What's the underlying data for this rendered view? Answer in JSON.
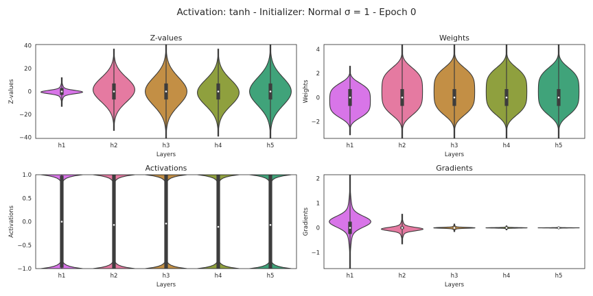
{
  "figure": {
    "title": "Activation: tanh - Initializer: Normal $\\sigma = 1$ - Epoch 0",
    "title_display": "Activation: tanh - Initializer: Normal σ = 1 - Epoch 0"
  },
  "colors": {
    "h1": "#d875e8",
    "h2": "#e57aa1",
    "h3": "#c38f45",
    "h4": "#8fa03e",
    "h5": "#40a37a",
    "outline": "#3a3a3a",
    "box": "#3d3d3d",
    "median": "#ffffff"
  },
  "chart_data": [
    {
      "type": "violin",
      "title": "Z-values",
      "xlabel": "Layers",
      "ylabel": "Z-values",
      "categories": [
        "h1",
        "h2",
        "h3",
        "h4",
        "h5"
      ],
      "ylim": [
        -41,
        41
      ],
      "yticks": [
        -40,
        -20,
        0,
        20,
        40
      ],
      "ytick_labels": [
        "−40",
        "−20",
        "0",
        "20",
        "40"
      ],
      "series": [
        {
          "category": "h1",
          "min": -13,
          "max": 12,
          "q1": -3,
          "median": 0,
          "q3": 3,
          "shape": "peaked",
          "maxwidth": 0.8
        },
        {
          "category": "h2",
          "min": -34,
          "max": 37,
          "q1": -7,
          "median": 0,
          "q3": 7,
          "shape": "bell",
          "maxwidth": 0.8
        },
        {
          "category": "h3",
          "min": -41,
          "max": 41,
          "q1": -7,
          "median": 0,
          "q3": 7,
          "shape": "bell",
          "maxwidth": 0.8
        },
        {
          "category": "h4",
          "min": -39,
          "max": 37,
          "q1": -7,
          "median": 0,
          "q3": 7,
          "shape": "bell",
          "maxwidth": 0.8
        },
        {
          "category": "h5",
          "min": -41,
          "max": 41,
          "q1": -7,
          "median": 0,
          "q3": 7,
          "shape": "bell",
          "maxwidth": 0.8
        }
      ]
    },
    {
      "type": "violin",
      "title": "Weights",
      "xlabel": "Layers",
      "ylabel": "Weights",
      "categories": [
        "h1",
        "h2",
        "h3",
        "h4",
        "h5"
      ],
      "ylim": [
        -3.4,
        4.4
      ],
      "yticks": [
        -2,
        0,
        2,
        4
      ],
      "ytick_labels": [
        "−2",
        "0",
        "2",
        "4"
      ],
      "series": [
        {
          "category": "h1",
          "min": -3.1,
          "max": 2.6,
          "q1": -0.7,
          "median": 0,
          "q3": 0.7,
          "shape": "flat",
          "maxwidth": 0.78
        },
        {
          "category": "h2",
          "min": -3.4,
          "max": 4.4,
          "q1": -0.7,
          "median": 0,
          "q3": 0.7,
          "shape": "flat",
          "maxwidth": 0.78
        },
        {
          "category": "h3",
          "min": -3.4,
          "max": 4.4,
          "q1": -0.7,
          "median": 0,
          "q3": 0.7,
          "shape": "flat",
          "maxwidth": 0.78
        },
        {
          "category": "h4",
          "min": -3.4,
          "max": 4.4,
          "q1": -0.7,
          "median": 0,
          "q3": 0.7,
          "shape": "flat",
          "maxwidth": 0.78
        },
        {
          "category": "h5",
          "min": -3.4,
          "max": 4.4,
          "q1": -0.7,
          "median": 0,
          "q3": 0.7,
          "shape": "flat",
          "maxwidth": 0.78
        }
      ]
    },
    {
      "type": "violin",
      "title": "Activations",
      "xlabel": "Layers",
      "ylabel": "Activations",
      "categories": [
        "h1",
        "h2",
        "h3",
        "h4",
        "h5"
      ],
      "ylim": [
        -1.0,
        1.0
      ],
      "yticks": [
        -1.0,
        -0.5,
        0.0,
        0.5,
        1.0
      ],
      "ytick_labels": [
        "−1.0",
        "−0.5",
        "0.0",
        "0.5",
        "1.0"
      ],
      "series": [
        {
          "category": "h1",
          "min": -1.0,
          "max": 1.0,
          "q1": -0.98,
          "median": 0.0,
          "q3": 0.98,
          "shape": "saturated",
          "maxwidth": 0.8
        },
        {
          "category": "h2",
          "min": -1.0,
          "max": 1.0,
          "q1": -1.0,
          "median": -0.07,
          "q3": 1.0,
          "shape": "saturated",
          "maxwidth": 0.8
        },
        {
          "category": "h3",
          "min": -1.0,
          "max": 1.0,
          "q1": -1.0,
          "median": -0.04,
          "q3": 1.0,
          "shape": "saturated",
          "maxwidth": 0.8
        },
        {
          "category": "h4",
          "min": -1.0,
          "max": 1.0,
          "q1": -1.0,
          "median": -0.11,
          "q3": 1.0,
          "shape": "saturated",
          "maxwidth": 0.8
        },
        {
          "category": "h5",
          "min": -1.0,
          "max": 1.0,
          "q1": -1.0,
          "median": -0.07,
          "q3": 1.0,
          "shape": "saturated",
          "maxwidth": 0.8
        }
      ]
    },
    {
      "type": "violin",
      "title": "Gradients",
      "xlabel": "Layers",
      "ylabel": "Gradients",
      "categories": [
        "h1",
        "h2",
        "h3",
        "h4",
        "h5"
      ],
      "ylim": [
        -1.65,
        2.15
      ],
      "yticks": [
        -1,
        0,
        1,
        2
      ],
      "ytick_labels": [
        "−1",
        "0",
        "1",
        "2"
      ],
      "series": [
        {
          "category": "h1",
          "min": -1.65,
          "max": 2.15,
          "q1": -0.25,
          "median": 0,
          "q3": 0.25,
          "shape": "peaked",
          "maxwidth": 0.8
        },
        {
          "category": "h2",
          "min": -0.65,
          "max": 0.55,
          "q1": -0.05,
          "median": 0,
          "q3": 0.05,
          "shape": "peaked",
          "maxwidth": 0.8
        },
        {
          "category": "h3",
          "min": -0.15,
          "max": 0.15,
          "q1": -0.02,
          "median": 0,
          "q3": 0.02,
          "shape": "peaked",
          "maxwidth": 0.8
        },
        {
          "category": "h4",
          "min": -0.08,
          "max": 0.08,
          "q1": -0.01,
          "median": 0,
          "q3": 0.01,
          "shape": "peaked",
          "maxwidth": 0.8
        },
        {
          "category": "h5",
          "min": -0.04,
          "max": 0.04,
          "q1": -0.005,
          "median": 0,
          "q3": 0.005,
          "shape": "peaked",
          "maxwidth": 0.8
        }
      ]
    }
  ]
}
